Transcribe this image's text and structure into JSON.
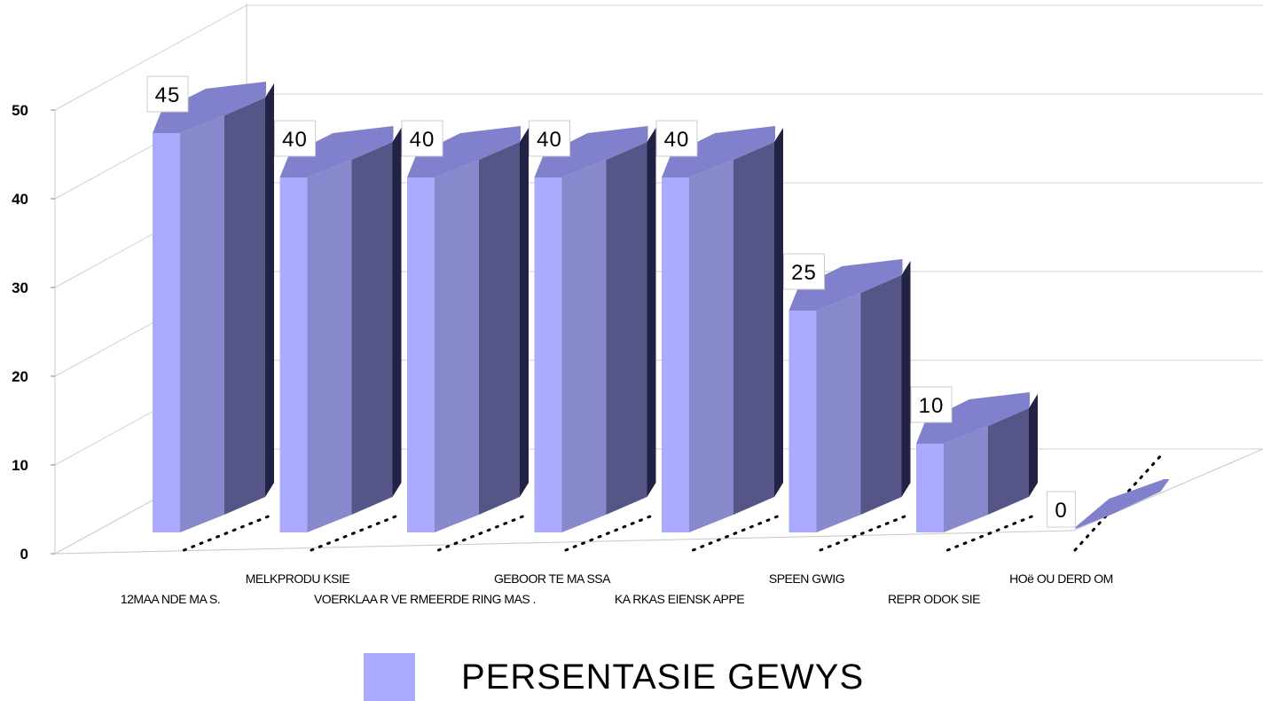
{
  "chart_data": {
    "type": "bar",
    "three_d": true,
    "categories": [
      "12MAA NDE MA S.",
      "MELKPRODU KSIE",
      "VOERKLAA R VE RMEERDE RING MAS .",
      "GEBOOR TE MA SSA",
      "KA RKAS EIENSK APPE",
      "SPEEN GWIG",
      "REPR ODOK SIE",
      "HOë OU DERD OM"
    ],
    "series": [
      {
        "name": "PERSENTASIE GEWYS",
        "values": [
          45,
          40,
          40,
          40,
          40,
          25,
          10,
          0
        ]
      }
    ],
    "data_labels": [
      "45",
      "40",
      "40",
      "40",
      "40",
      "25",
      "10",
      "0"
    ],
    "y_ticks": [
      "0",
      "10",
      "20",
      "30",
      "40",
      "50"
    ],
    "ylim": [
      0,
      50
    ],
    "grid": true,
    "legend_position": "bottom",
    "colors": {
      "front": "#aaaaff",
      "side": "#8888cc",
      "back": "#555588",
      "top": "#8080cc",
      "edge": "#222244"
    }
  }
}
